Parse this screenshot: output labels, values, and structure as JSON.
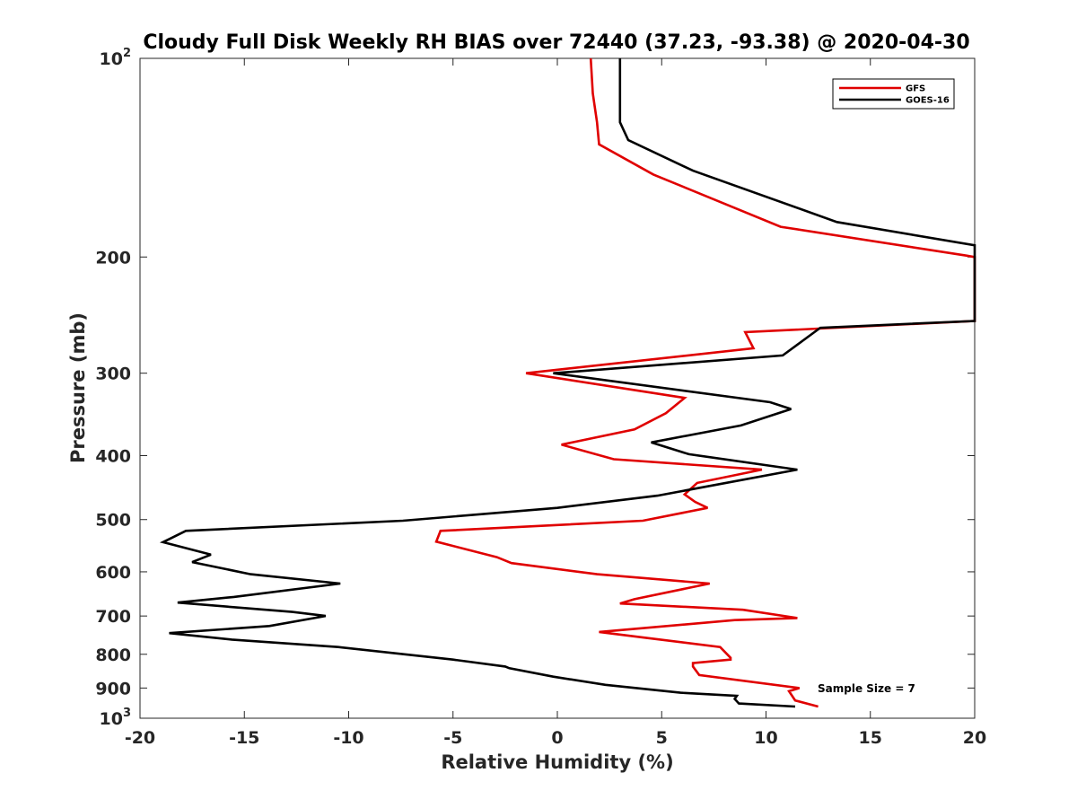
{
  "chart_data": {
    "type": "line",
    "title": "Cloudy Full Disk Weekly RH BIAS over 72440 (37.23, -93.38) @ 2020-04-30",
    "xlabel": "Relative Humidity (%)",
    "ylabel": "Pressure (mb)",
    "xlim": [
      -20,
      20
    ],
    "ylim": [
      100,
      1000
    ],
    "y_scale": "log",
    "y_reversed": true,
    "x_ticks": [
      -20,
      -15,
      -10,
      -5,
      0,
      5,
      10,
      15,
      20
    ],
    "y_ticks": [
      {
        "value": 100,
        "base": "10",
        "exp": "2"
      },
      {
        "value": 200,
        "label": "200"
      },
      {
        "value": 300,
        "label": "300"
      },
      {
        "value": 400,
        "label": "400"
      },
      {
        "value": 500,
        "label": "500"
      },
      {
        "value": 600,
        "label": "600"
      },
      {
        "value": 700,
        "label": "700"
      },
      {
        "value": 800,
        "label": "800"
      },
      {
        "value": 900,
        "label": "900"
      },
      {
        "value": 1000,
        "base": "10",
        "exp": "3"
      }
    ],
    "grid": false,
    "legend_position": "top-right",
    "annotation": "Sample Size = 7",
    "series": [
      {
        "name": "GFS",
        "color": "#e00000",
        "points": [
          [
            1.6,
            100
          ],
          [
            1.7,
            113
          ],
          [
            1.9,
            125
          ],
          [
            2.0,
            135
          ],
          [
            4.6,
            150
          ],
          [
            10.7,
            180
          ],
          [
            19.6,
            199
          ],
          [
            20.0,
            200
          ],
          [
            20.0,
            250
          ],
          [
            9.0,
            260
          ],
          [
            9.4,
            275
          ],
          [
            -1.5,
            300
          ],
          [
            6.1,
            327
          ],
          [
            5.2,
            345
          ],
          [
            3.7,
            365
          ],
          [
            0.2,
            385
          ],
          [
            2.7,
            405
          ],
          [
            9.8,
            420
          ],
          [
            6.7,
            440
          ],
          [
            6.1,
            458
          ],
          [
            6.6,
            470
          ],
          [
            7.2,
            480
          ],
          [
            4.1,
            502
          ],
          [
            -5.6,
            520
          ],
          [
            -5.8,
            540
          ],
          [
            -2.9,
            570
          ],
          [
            -2.2,
            582
          ],
          [
            1.9,
            605
          ],
          [
            7.3,
            625
          ],
          [
            3.7,
            660
          ],
          [
            3.0,
            670
          ],
          [
            8.9,
            685
          ],
          [
            11.5,
            705
          ],
          [
            8.5,
            710
          ],
          [
            2.0,
            740
          ],
          [
            4.2,
            755
          ],
          [
            7.8,
            780
          ],
          [
            8.3,
            810
          ],
          [
            8.3,
            815
          ],
          [
            6.5,
            825
          ],
          [
            6.5,
            835
          ],
          [
            6.8,
            860
          ],
          [
            11.6,
            900
          ],
          [
            11.1,
            910
          ],
          [
            11.4,
            940
          ],
          [
            12.5,
            960
          ]
        ]
      },
      {
        "name": "GOES-16",
        "color": "#000000",
        "points": [
          [
            3.0,
            100
          ],
          [
            3.0,
            113
          ],
          [
            3.0,
            125
          ],
          [
            3.4,
            133
          ],
          [
            6.5,
            148
          ],
          [
            13.4,
            177
          ],
          [
            20.0,
            192
          ],
          [
            20.0,
            250
          ],
          [
            12.6,
            256
          ],
          [
            10.8,
            282
          ],
          [
            -0.2,
            300
          ],
          [
            10.2,
            332
          ],
          [
            11.2,
            340
          ],
          [
            8.8,
            360
          ],
          [
            4.5,
            382
          ],
          [
            6.3,
            398
          ],
          [
            11.5,
            420
          ],
          [
            4.8,
            460
          ],
          [
            0.0,
            480
          ],
          [
            -7.4,
            502
          ],
          [
            -17.8,
            520
          ],
          [
            -18.9,
            541
          ],
          [
            -16.6,
            565
          ],
          [
            -17.5,
            580
          ],
          [
            -14.7,
            605
          ],
          [
            -10.4,
            625
          ],
          [
            -15.5,
            655
          ],
          [
            -18.2,
            668
          ],
          [
            -12.7,
            690
          ],
          [
            -11.1,
            700
          ],
          [
            -13.8,
            725
          ],
          [
            -18.6,
            743
          ],
          [
            -15.6,
            760
          ],
          [
            -10.5,
            780
          ],
          [
            -5.0,
            815
          ],
          [
            -2.5,
            835
          ],
          [
            -2.3,
            840
          ],
          [
            -0.2,
            865
          ],
          [
            2.3,
            890
          ],
          [
            5.9,
            915
          ],
          [
            8.6,
            925
          ],
          [
            8.5,
            935
          ],
          [
            8.7,
            950
          ],
          [
            11.4,
            960
          ]
        ]
      }
    ]
  }
}
